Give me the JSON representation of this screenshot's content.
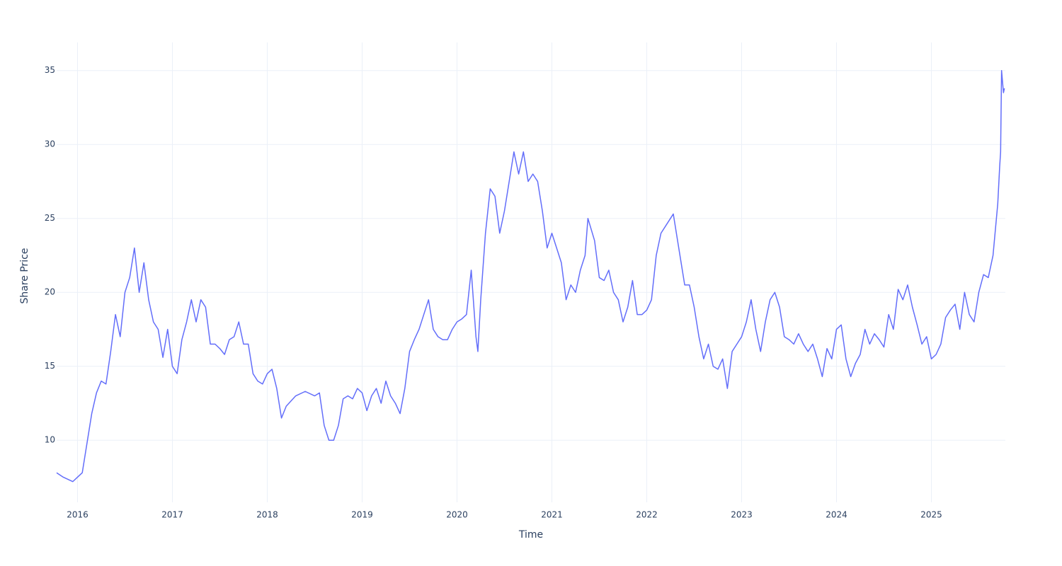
{
  "chart_data": {
    "type": "line",
    "x_label": "Time",
    "y_label": "Share Price",
    "xlim": [
      2015.78,
      2025.78
    ],
    "ylim": [
      5.8,
      36.9
    ],
    "xticks": [
      2016,
      2017,
      2018,
      2019,
      2020,
      2021,
      2022,
      2023,
      2024,
      2025
    ],
    "yticks": [
      10,
      15,
      20,
      25,
      30,
      35
    ],
    "grid": true,
    "series": [
      {
        "color": "#636efa",
        "x": [
          2015.78,
          2015.85,
          2015.95,
          2016.0,
          2016.05,
          2016.1,
          2016.15,
          2016.2,
          2016.25,
          2016.3,
          2016.35,
          2016.4,
          2016.45,
          2016.5,
          2016.55,
          2016.6,
          2016.65,
          2016.7,
          2016.75,
          2016.8,
          2016.85,
          2016.9,
          2016.95,
          2017.0,
          2017.05,
          2017.1,
          2017.15,
          2017.2,
          2017.25,
          2017.3,
          2017.35,
          2017.4,
          2017.45,
          2017.5,
          2017.55,
          2017.6,
          2017.65,
          2017.7,
          2017.75,
          2017.8,
          2017.85,
          2017.9,
          2017.95,
          2018.0,
          2018.05,
          2018.1,
          2018.15,
          2018.2,
          2018.3,
          2018.4,
          2018.5,
          2018.55,
          2018.6,
          2018.65,
          2018.7,
          2018.75,
          2018.8,
          2018.85,
          2018.9,
          2018.95,
          2019.0,
          2019.05,
          2019.1,
          2019.15,
          2019.2,
          2019.25,
          2019.3,
          2019.35,
          2019.4,
          2019.45,
          2019.5,
          2019.55,
          2019.6,
          2019.65,
          2019.7,
          2019.75,
          2019.8,
          2019.85,
          2019.9,
          2019.95,
          2020.0,
          2020.05,
          2020.1,
          2020.15,
          2020.2,
          2020.22,
          2020.25,
          2020.3,
          2020.35,
          2020.4,
          2020.45,
          2020.5,
          2020.55,
          2020.6,
          2020.65,
          2020.7,
          2020.75,
          2020.8,
          2020.85,
          2020.9,
          2020.95,
          2021.0,
          2021.05,
          2021.1,
          2021.15,
          2021.2,
          2021.25,
          2021.3,
          2021.35,
          2021.38,
          2021.45,
          2021.5,
          2021.55,
          2021.6,
          2021.65,
          2021.7,
          2021.75,
          2021.8,
          2021.85,
          2021.9,
          2021.95,
          2022.0,
          2022.05,
          2022.1,
          2022.15,
          2022.2,
          2022.28,
          2022.35,
          2022.4,
          2022.45,
          2022.5,
          2022.55,
          2022.6,
          2022.65,
          2022.7,
          2022.75,
          2022.8,
          2022.85,
          2022.9,
          2022.95,
          2023.0,
          2023.05,
          2023.1,
          2023.15,
          2023.2,
          2023.25,
          2023.3,
          2023.35,
          2023.4,
          2023.45,
          2023.5,
          2023.55,
          2023.6,
          2023.65,
          2023.7,
          2023.75,
          2023.8,
          2023.85,
          2023.9,
          2023.95,
          2024.0,
          2024.05,
          2024.1,
          2024.15,
          2024.2,
          2024.25,
          2024.3,
          2024.35,
          2024.4,
          2024.45,
          2024.5,
          2024.55,
          2024.6,
          2024.65,
          2024.7,
          2024.75,
          2024.8,
          2024.85,
          2024.9,
          2024.95,
          2025.0,
          2025.05,
          2025.1,
          2025.15,
          2025.2,
          2025.25,
          2025.3,
          2025.35,
          2025.4,
          2025.45,
          2025.5,
          2025.55,
          2025.6,
          2025.65,
          2025.7,
          2025.72,
          2025.73,
          2025.74,
          2025.76,
          2025.77
        ],
        "values": [
          7.8,
          7.5,
          7.2,
          7.5,
          7.8,
          9.8,
          11.8,
          13.2,
          14.0,
          13.8,
          16.0,
          18.5,
          17.0,
          20.0,
          21.0,
          23.0,
          20.0,
          22.0,
          19.5,
          18.0,
          17.5,
          15.6,
          17.5,
          15.0,
          14.5,
          16.8,
          18.0,
          19.5,
          18.0,
          19.5,
          19.0,
          16.5,
          16.5,
          16.2,
          15.8,
          16.8,
          17.0,
          18.0,
          16.5,
          16.5,
          14.5,
          14.0,
          13.8,
          14.5,
          14.8,
          13.5,
          11.5,
          12.3,
          13.0,
          13.3,
          13.0,
          13.2,
          11.0,
          10.0,
          10.0,
          11.0,
          12.8,
          13.0,
          12.8,
          13.5,
          13.2,
          12.0,
          13.0,
          13.5,
          12.5,
          14.0,
          13.0,
          12.5,
          11.8,
          13.5,
          16.0,
          16.8,
          17.5,
          18.5,
          19.5,
          17.5,
          17.0,
          16.8,
          16.8,
          17.5,
          18.0,
          18.2,
          18.5,
          21.5,
          17.0,
          16.0,
          19.5,
          24.0,
          27.0,
          26.5,
          24.0,
          25.5,
          27.5,
          29.5,
          28.0,
          29.5,
          27.5,
          28.0,
          27.5,
          25.5,
          23.0,
          24.0,
          23.0,
          22.0,
          19.5,
          20.5,
          20.0,
          21.5,
          22.5,
          25.0,
          23.5,
          21.0,
          20.8,
          21.5,
          20.0,
          19.5,
          18.0,
          19.0,
          20.8,
          18.5,
          18.5,
          18.8,
          19.5,
          22.5,
          24.0,
          24.5,
          25.3,
          22.5,
          20.5,
          20.5,
          19.0,
          17.0,
          15.5,
          16.5,
          15.0,
          14.8,
          15.5,
          13.5,
          16.0,
          16.5,
          17.0,
          18.0,
          19.5,
          17.5,
          16.0,
          18.0,
          19.5,
          20.0,
          19.0,
          17.0,
          16.8,
          16.5,
          17.2,
          16.5,
          16.0,
          16.5,
          15.5,
          14.3,
          16.2,
          15.5,
          17.5,
          17.8,
          15.5,
          14.3,
          15.2,
          15.8,
          17.5,
          16.5,
          17.2,
          16.8,
          16.3,
          18.5,
          17.5,
          20.2,
          19.5,
          20.5,
          19.0,
          17.8,
          16.5,
          17.0,
          15.5,
          15.8,
          16.5,
          18.3,
          18.8,
          19.2,
          17.5,
          20.0,
          18.5,
          18.0,
          20.0,
          21.2,
          21.0,
          22.5,
          26.0,
          28.5,
          29.5,
          35.0,
          33.5,
          33.8
        ]
      }
    ]
  }
}
